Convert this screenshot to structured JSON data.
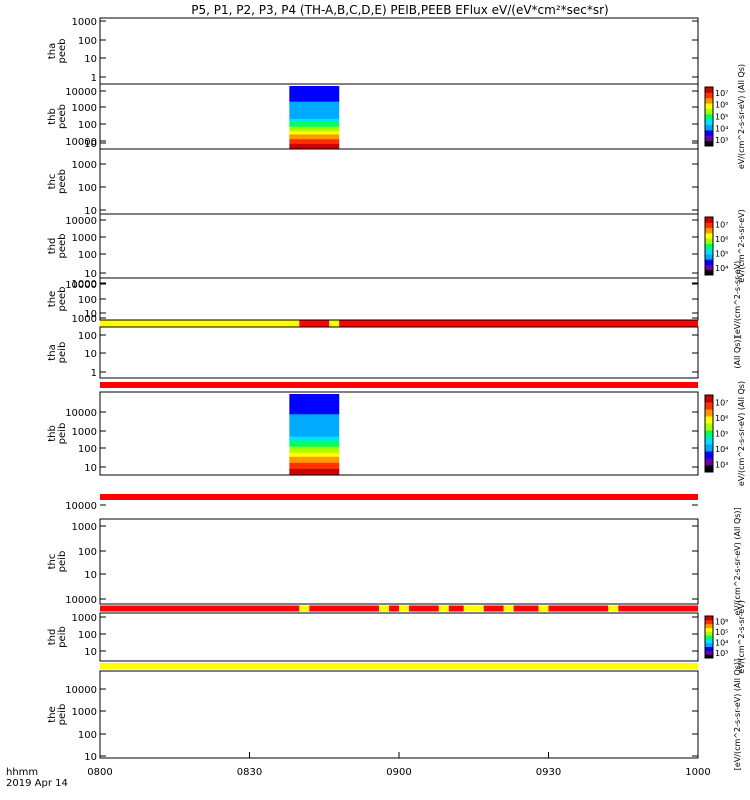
{
  "title": "P5, P1, P2, P3, P4 (TH-A,B,C,D,E) PEIB,PEEB EFlux eV/(eV*cm²*sec*sr)",
  "footer": {
    "time_label": "hhmm",
    "date_label": "2019 Apr 14"
  },
  "x_ticks": [
    "0800",
    "0830",
    "0900",
    "0930",
    "1000"
  ],
  "x_range": [
    "08:00",
    "10:00"
  ],
  "colors": {
    "flag_red": "#ff0000",
    "flag_yellow": "#ffff00"
  },
  "colorbar_colors": [
    "#000000",
    "#6a00a8",
    "#0000ff",
    "#00aaff",
    "#00e0ff",
    "#00ff66",
    "#aaff00",
    "#ffff00",
    "#ff9900",
    "#ff3300",
    "#cc0000"
  ],
  "chart_data": [
    {
      "type": "heatmap",
      "ylabel": "tha\npeeb",
      "y_ticks": [
        "1",
        "10",
        "100",
        "1000"
      ],
      "y_scale": "log",
      "data_present": false
    },
    {
      "type": "heatmap",
      "ylabel": "thb\npeeb",
      "y_ticks": [
        "10",
        "100",
        "1000",
        "10000"
      ],
      "y_scale": "log",
      "data_present": true,
      "data_time_range": [
        "08:38",
        "08:48"
      ],
      "colorbar": {
        "ticks": [
          "10³",
          "10⁴",
          "10⁵",
          "10⁶",
          "10⁷"
        ],
        "label": "eV/(cm^2-s-sr-eV) (All Qs)"
      }
    },
    {
      "type": "heatmap",
      "ylabel": "thc\npeeb",
      "y_ticks": [
        "10",
        "100",
        "1000",
        "10000"
      ],
      "y_scale": "log",
      "data_present": false
    },
    {
      "type": "heatmap",
      "ylabel": "thd\npeeb",
      "y_ticks": [
        "10",
        "100",
        "1000",
        "10000"
      ],
      "y_scale": "log",
      "data_present": false,
      "colorbar": {
        "ticks": [
          "10⁴",
          "10⁵",
          "10⁶",
          "10⁷"
        ],
        "label": "eV/(cm^2-s-sr-eV)"
      }
    },
    {
      "type": "heatmap",
      "ylabel": "the\npeeb",
      "y_ticks": [
        "10",
        "100",
        "1000",
        "10000"
      ],
      "y_scale": "log",
      "data_present": false,
      "side_label": "[eV/(cm^2-s-sr-eV)"
    },
    {
      "type": "flag_bar",
      "segments": [
        {
          "from": "08:00",
          "to": "08:40",
          "color": "yellow"
        },
        {
          "from": "08:40",
          "to": "08:46",
          "color": "red"
        },
        {
          "from": "08:46",
          "to": "08:48",
          "color": "yellow"
        },
        {
          "from": "08:48",
          "to": "10:00",
          "color": "red"
        }
      ]
    },
    {
      "type": "heatmap",
      "ylabel": "tha\npeib",
      "y_ticks": [
        "1",
        "10",
        "100",
        "1000"
      ],
      "y_scale": "log",
      "data_present": false,
      "side_label": "(All Qs)]"
    },
    {
      "type": "flag_bar",
      "segments": [
        {
          "from": "08:00",
          "to": "10:00",
          "color": "red"
        }
      ]
    },
    {
      "type": "heatmap",
      "ylabel": "thb\npeib",
      "y_ticks": [
        "10",
        "100",
        "1000",
        "10000"
      ],
      "y_scale": "log",
      "data_present": true,
      "data_time_range": [
        "08:38",
        "08:48"
      ],
      "colorbar": {
        "ticks": [
          "10³",
          "10⁴",
          "10⁵",
          "10⁶",
          "10⁷"
        ],
        "label": "eV/(cm^2-s-sr-eV) (All Qs)"
      }
    },
    {
      "type": "flag_bar",
      "segments": [
        {
          "from": "08:00",
          "to": "10:00",
          "color": "red"
        }
      ]
    },
    {
      "type": "heatmap",
      "ylabel": "thc\npeib",
      "y_ticks": [
        "10",
        "100",
        "1000",
        "10000"
      ],
      "y_scale": "log",
      "data_present": false,
      "side_label": "eV/(cm^2-s-sr-eV) (All Qs)]"
    },
    {
      "type": "flag_bar",
      "segments": [
        {
          "from": "08:00",
          "to": "08:40",
          "color": "red"
        },
        {
          "from": "08:40",
          "to": "08:42",
          "color": "yellow"
        },
        {
          "from": "08:42",
          "to": "08:56",
          "color": "red"
        },
        {
          "from": "08:56",
          "to": "08:58",
          "color": "yellow"
        },
        {
          "from": "08:58",
          "to": "09:00",
          "color": "red"
        },
        {
          "from": "09:00",
          "to": "09:02",
          "color": "yellow"
        },
        {
          "from": "09:02",
          "to": "09:08",
          "color": "red"
        },
        {
          "from": "09:08",
          "to": "09:10",
          "color": "yellow"
        },
        {
          "from": "09:10",
          "to": "09:13",
          "color": "red"
        },
        {
          "from": "09:13",
          "to": "09:17",
          "color": "yellow"
        },
        {
          "from": "09:17",
          "to": "09:21",
          "color": "red"
        },
        {
          "from": "09:21",
          "to": "09:23",
          "color": "yellow"
        },
        {
          "from": "09:23",
          "to": "09:28",
          "color": "red"
        },
        {
          "from": "09:28",
          "to": "09:30",
          "color": "yellow"
        },
        {
          "from": "09:30",
          "to": "09:42",
          "color": "red"
        },
        {
          "from": "09:42",
          "to": "09:44",
          "color": "yellow"
        },
        {
          "from": "09:44",
          "to": "10:00",
          "color": "red"
        }
      ]
    },
    {
      "type": "heatmap",
      "ylabel": "thd\npeib",
      "y_ticks": [
        "10",
        "100",
        "1000",
        "10000"
      ],
      "y_scale": "log",
      "data_present": false,
      "colorbar": {
        "ticks": [
          "10³",
          "10⁴",
          "10⁵",
          "10⁶"
        ],
        "label": "eV/(cm^2-s-sr-eV)"
      }
    },
    {
      "type": "flag_bar",
      "segments": [
        {
          "from": "08:00",
          "to": "10:00",
          "color": "yellow"
        }
      ]
    },
    {
      "type": "heatmap",
      "ylabel": "the\npeib",
      "y_ticks": [
        "10",
        "100",
        "1000",
        "10000"
      ],
      "y_scale": "log",
      "data_present": false,
      "side_label": "[eV/(cm^2-s-sr-eV) (All Qs)]"
    }
  ]
}
